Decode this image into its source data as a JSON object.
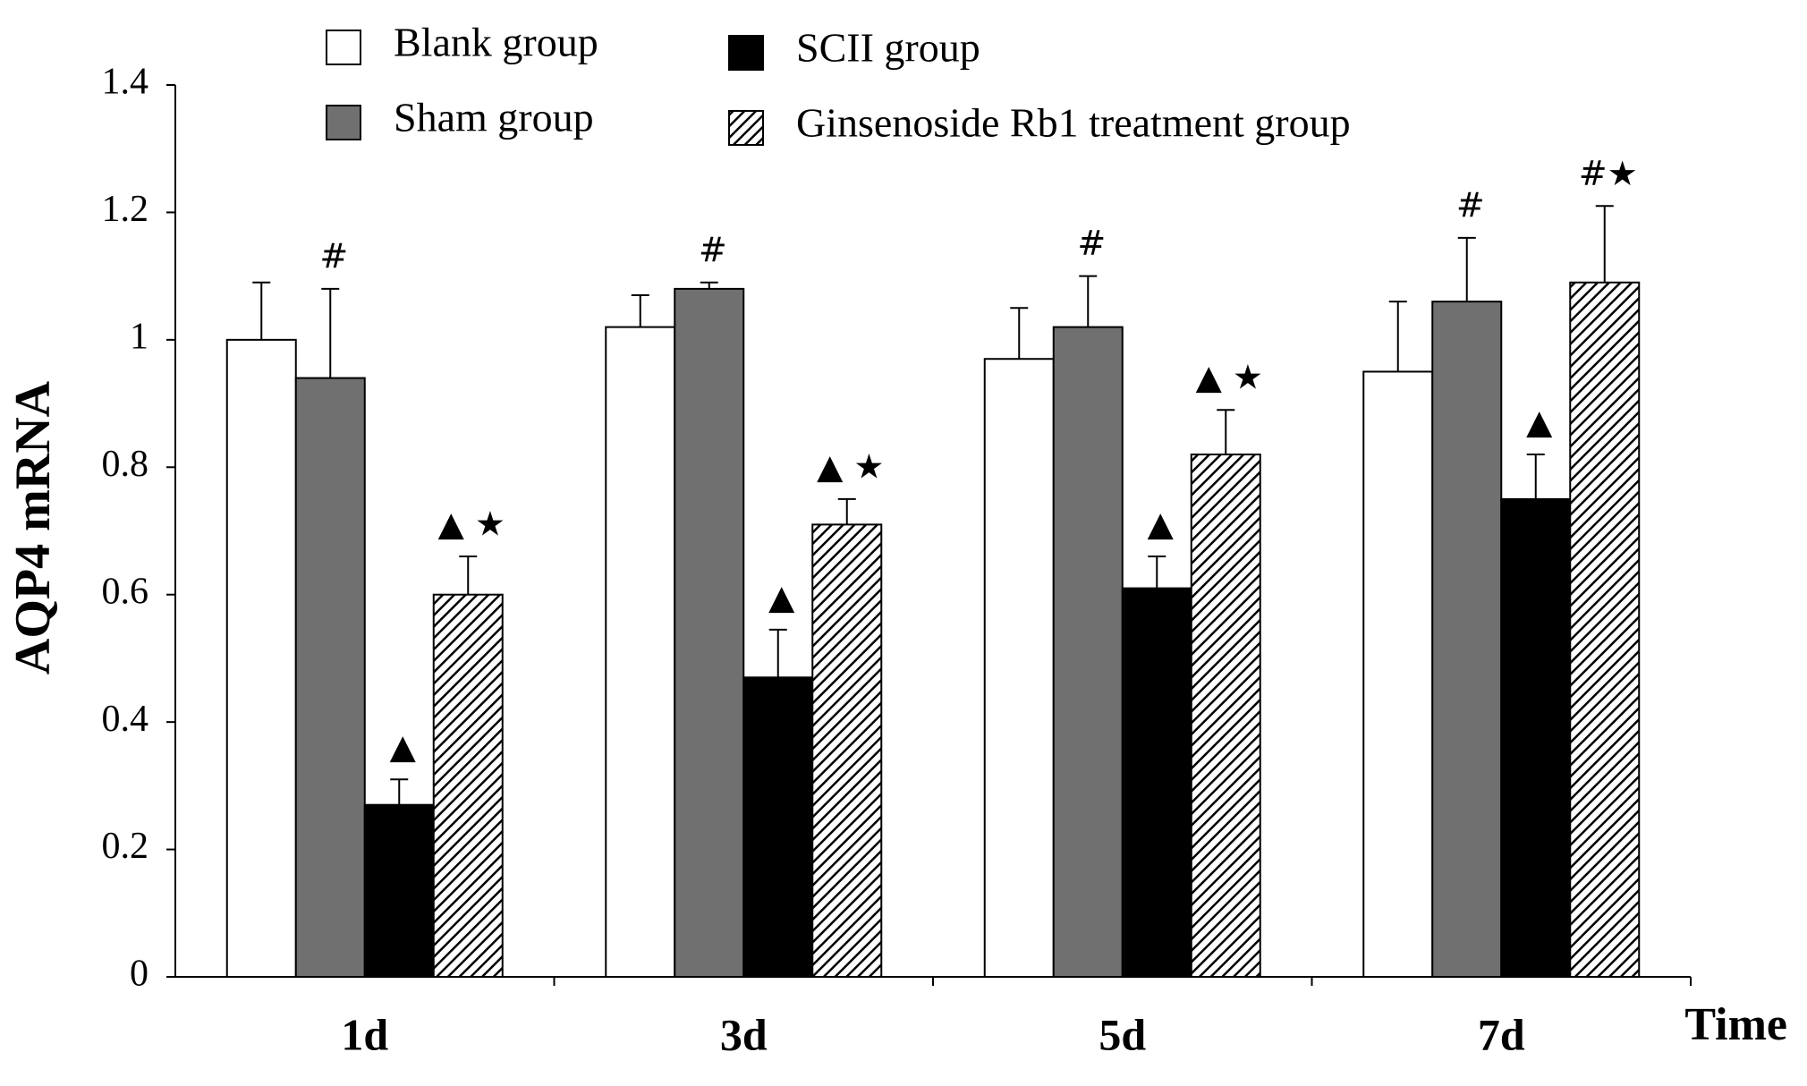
{
  "chart_data": {
    "type": "bar",
    "y_label": "AQP4 mRNA",
    "x_label": "Time",
    "categories": [
      "1d",
      "3d",
      "5d",
      "7d"
    ],
    "series": [
      {
        "name": "Blank group",
        "color": "#ffffff",
        "values": [
          1.0,
          1.02,
          0.97,
          0.95
        ],
        "errors": [
          0.09,
          0.05,
          0.08,
          0.11
        ],
        "markers": [
          null,
          null,
          null,
          null
        ]
      },
      {
        "name": "Sham group",
        "color": "#707070",
        "values": [
          0.94,
          1.08,
          1.02,
          1.06
        ],
        "errors": [
          0.14,
          0.01,
          0.08,
          0.1
        ],
        "markers": [
          "#",
          "#",
          "#",
          "#"
        ]
      },
      {
        "name": "SCII group",
        "color": "#000000",
        "values": [
          0.27,
          0.47,
          0.61,
          0.75
        ],
        "errors": [
          0.04,
          0.075,
          0.05,
          0.07
        ],
        "markers": [
          "▲",
          "▲",
          "▲",
          "▲"
        ]
      },
      {
        "name": "Ginsenoside Rb1 treatment group",
        "color": "#000000",
        "pattern": "hatch",
        "values": [
          0.6,
          0.71,
          0.82,
          1.09
        ],
        "errors": [
          0.06,
          0.04,
          0.07,
          0.12
        ],
        "markers": [
          "▲ ★",
          "▲ ★",
          "▲ ★",
          "#★"
        ]
      }
    ],
    "ylim": [
      0,
      1.4
    ],
    "yticks": [
      0,
      0.2,
      0.4,
      0.6,
      0.8,
      1,
      1.2,
      1.4
    ],
    "grid": false
  }
}
